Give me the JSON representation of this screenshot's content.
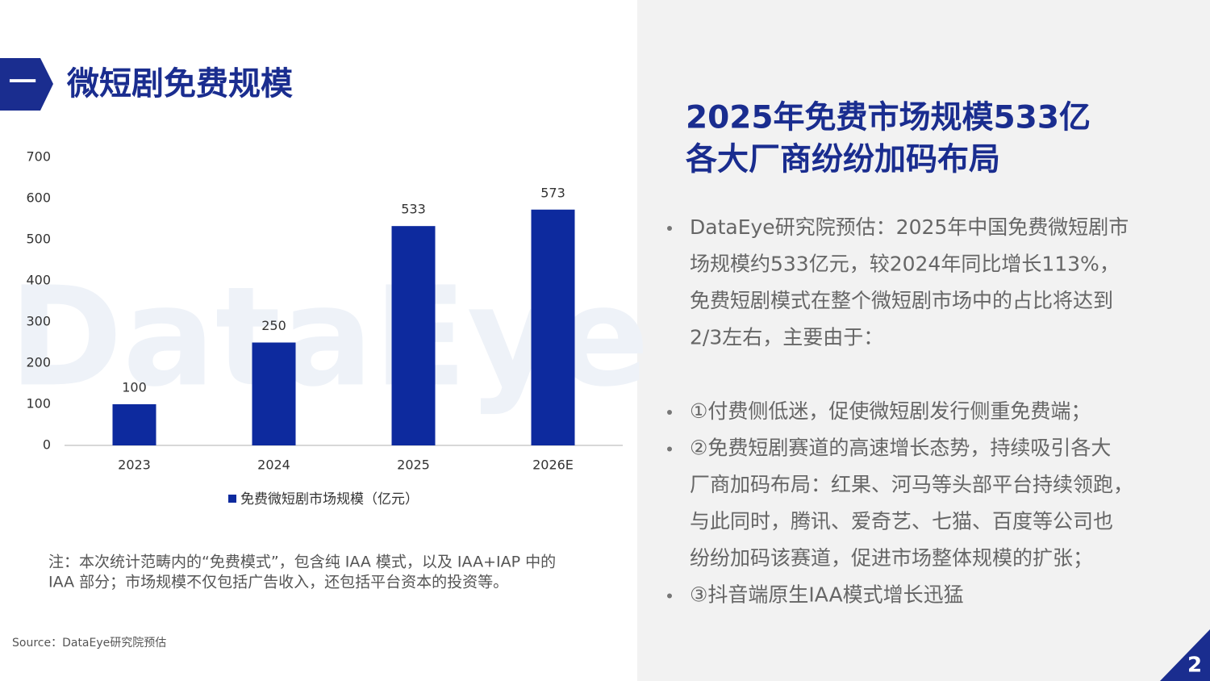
{
  "header": {
    "mark": "一",
    "title": "微短剧免费规模"
  },
  "chart_data": {
    "type": "bar",
    "watermark": "DataEye",
    "categories": [
      "2023",
      "2024",
      "2025",
      "2026E"
    ],
    "series": [
      {
        "name": "免费微短剧市场规模（亿元）",
        "color": "#0d2a9e",
        "values": [
          100,
          250,
          533,
          573
        ]
      }
    ],
    "ylim": [
      0,
      700
    ],
    "yticks": [
      0,
      100,
      200,
      300,
      400,
      500,
      600,
      700
    ],
    "grid": false,
    "legend": "bottom"
  },
  "note": [
    "注：本次统计范畴内的“免费模式”，包含纯 IAA 模式，以及 IAA+IAP 中的",
    "IAA 部分；市场规模不仅包括广告收入，还包括平台资本的投资等。"
  ],
  "source": "Source：DataEye研究院预估",
  "panel": {
    "heading": [
      "2025年免费市场规模533亿",
      "各大厂商纷纷加码布局"
    ],
    "bullets": [
      [
        "DataEye研究院预估：2025年中国免费微短剧市",
        "场规模约533亿元，较2024年同比增长113%，",
        "免费短剧模式在整个微短剧市场中的占比将达到",
        "2/3左右，主要由于："
      ],
      [
        "①付费侧低迷，促使微短剧发行侧重免费端；"
      ],
      [
        "②免费短剧赛道的高速增长态势，持续吸引各大",
        "厂商加码布局：红果、河马等头部平台持续领跑，",
        "与此同时，腾讯、爱奇艺、七猫、百度等公司也",
        "纷纷加码该赛道，促进市场整体规模的扩张；"
      ],
      [
        "③抖音端原生IAA模式增长迅猛"
      ]
    ]
  },
  "page_number": "2"
}
